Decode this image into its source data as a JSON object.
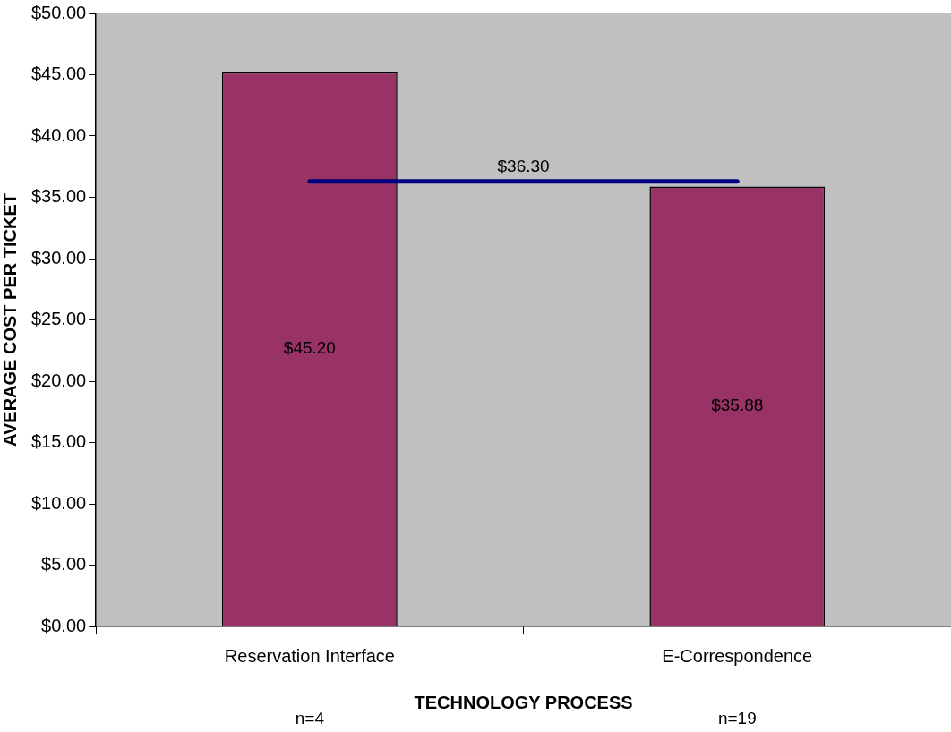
{
  "chart_data": {
    "type": "bar",
    "xlabel": "TECHNOLOGY PROCESS",
    "ylabel": "AVERAGE COST PER TICKET",
    "categories": [
      "Reservation Interface",
      "E-Correspondence"
    ],
    "series": [
      {
        "color": "#993366",
        "values": [
          45.2,
          35.88
        ],
        "value_labels": [
          "$45.20",
          "$35.88"
        ]
      },
      {
        "type": "line",
        "color": "#000080",
        "values": [
          36.3,
          36.3
        ]
      }
    ],
    "ylim": [
      0,
      50
    ],
    "yticks": [
      {
        "value": 0,
        "label": "$0.00"
      },
      {
        "value": 5,
        "label": "$5.00"
      },
      {
        "value": 10,
        "label": "$10.00"
      },
      {
        "value": 15,
        "label": "$15.00"
      },
      {
        "value": 20,
        "label": "$20.00"
      },
      {
        "value": 25,
        "label": "$25.00"
      },
      {
        "value": 30,
        "label": "$30.00"
      },
      {
        "value": 35,
        "label": "$35.00"
      },
      {
        "value": 40,
        "label": "$40.00"
      },
      {
        "value": 45,
        "label": "$45.00"
      },
      {
        "value": 50,
        "label": "$50.00"
      }
    ],
    "annotations": [
      {
        "text": "$36.30",
        "y": 36.3
      },
      "n=4",
      "n=19"
    ],
    "grid": false,
    "legend": false,
    "marker": "none"
  }
}
